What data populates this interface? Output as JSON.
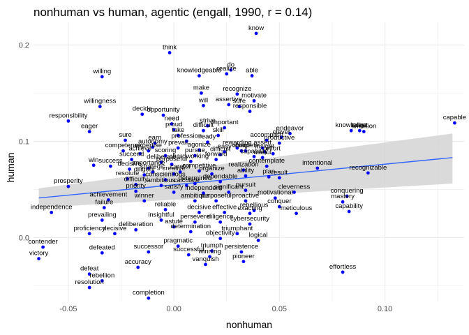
{
  "chart_data": {
    "type": "scatter",
    "title": "nonhuman vs human, agentic (engall, 1990, r = 0.14)",
    "xlabel": "nonhuman",
    "ylabel": "human",
    "xlim": [
      -0.0665,
      0.1375
    ],
    "ylim": [
      -0.0665,
      0.2235
    ],
    "x_ticks": [
      -0.05,
      0.0,
      0.05,
      0.1
    ],
    "x_tick_labels": [
      "-0.05",
      "0.00",
      "0.05",
      "0.10"
    ],
    "y_ticks": [
      0.0,
      0.1,
      0.2
    ],
    "y_tick_labels": [
      "0.0",
      "0.1",
      "0.2"
    ],
    "grid": true,
    "colors": {
      "point": "#0000ff",
      "trend": "#3366ff",
      "band": "#d3d3d3",
      "grid": "#ebebeb"
    },
    "trend": {
      "x": [
        -0.064,
        0.132
      ],
      "y": [
        0.041,
        0.083
      ],
      "ci_lower": [
        0.031,
        0.056
      ],
      "ci_upper": [
        0.051,
        0.108
      ]
    },
    "points": [
      {
        "label": "know",
        "x": 0.039,
        "y": 0.212
      },
      {
        "label": "think",
        "x": -0.002,
        "y": 0.192
      },
      {
        "label": "willing",
        "x": -0.034,
        "y": 0.167
      },
      {
        "label": "knowledgeable",
        "x": 0.012,
        "y": 0.168
      },
      {
        "label": "realize",
        "x": 0.025,
        "y": 0.17
      },
      {
        "label": "do",
        "x": 0.027,
        "y": 0.174
      },
      {
        "label": "able",
        "x": 0.037,
        "y": 0.168
      },
      {
        "label": "make",
        "x": 0.013,
        "y": 0.15
      },
      {
        "label": "recognize",
        "x": 0.03,
        "y": 0.149
      },
      {
        "label": "motivate",
        "x": 0.038,
        "y": 0.142
      },
      {
        "label": "will",
        "x": 0.014,
        "y": 0.137
      },
      {
        "label": "assertive",
        "x": 0.026,
        "y": 0.138
      },
      {
        "label": "sure",
        "x": 0.031,
        "y": 0.136
      },
      {
        "label": "willingness",
        "x": -0.035,
        "y": 0.136
      },
      {
        "label": "responsible",
        "x": 0.036,
        "y": 0.131
      },
      {
        "label": "decide",
        "x": -0.015,
        "y": 0.128
      },
      {
        "label": "opportunity",
        "x": -0.005,
        "y": 0.127
      },
      {
        "label": "responsibility",
        "x": -0.05,
        "y": 0.121
      },
      {
        "label": "capable",
        "x": 0.133,
        "y": 0.119
      },
      {
        "label": "need",
        "x": -0.001,
        "y": 0.118
      },
      {
        "label": "strive",
        "x": 0.016,
        "y": 0.116
      },
      {
        "label": "important",
        "x": 0.024,
        "y": 0.114
      },
      {
        "label": "proud",
        "x": 0.0,
        "y": 0.112
      },
      {
        "label": "difficult",
        "x": 0.014,
        "y": 0.111
      },
      {
        "label": "knowledge",
        "x": 0.084,
        "y": 0.111
      },
      {
        "label": "talent",
        "x": 0.088,
        "y": 0.111
      },
      {
        "label": "ambition",
        "x": 0.09,
        "y": 0.11
      },
      {
        "label": "eager",
        "x": -0.04,
        "y": 0.11
      },
      {
        "label": "endeavor",
        "x": 0.055,
        "y": 0.108
      },
      {
        "label": "take",
        "x": 0.002,
        "y": 0.106
      },
      {
        "label": "skill",
        "x": 0.021,
        "y": 0.106
      },
      {
        "label": "clever",
        "x": 0.051,
        "y": 0.104
      },
      {
        "label": "sure",
        "x": -0.023,
        "y": 0.101
      },
      {
        "label": "profession",
        "x": 0.006,
        "y": 0.1
      },
      {
        "label": "ready",
        "x": 0.016,
        "y": 0.099
      },
      {
        "label": "accomplish",
        "x": 0.044,
        "y": 0.101
      },
      {
        "label": "productive",
        "x": 0.05,
        "y": 0.098
      },
      {
        "label": "earn",
        "x": -0.009,
        "y": 0.098
      },
      {
        "label": "autonomy",
        "x": -0.01,
        "y": 0.094
      },
      {
        "label": "prevail",
        "x": 0.002,
        "y": 0.093
      },
      {
        "label": "rewarding",
        "x": 0.03,
        "y": 0.093
      },
      {
        "label": "complete",
        "x": 0.034,
        "y": 0.09
      },
      {
        "label": "insight",
        "x": 0.043,
        "y": 0.089
      },
      {
        "label": "assert",
        "x": 0.042,
        "y": 0.093
      },
      {
        "label": "expertise",
        "x": -0.012,
        "y": 0.09
      },
      {
        "label": "competence",
        "x": -0.024,
        "y": 0.09
      },
      {
        "label": "agonize",
        "x": 0.012,
        "y": 0.091
      },
      {
        "label": "easy",
        "x": 0.024,
        "y": 0.089
      },
      {
        "label": "sharp",
        "x": 0.032,
        "y": 0.09
      },
      {
        "label": "effort",
        "x": 0.047,
        "y": 0.087
      },
      {
        "label": "achieve",
        "x": -0.016,
        "y": 0.087
      },
      {
        "label": "scoring",
        "x": -0.004,
        "y": 0.085
      },
      {
        "label": "pursue",
        "x": 0.01,
        "y": 0.085
      },
      {
        "label": "difficult",
        "x": 0.022,
        "y": 0.086
      },
      {
        "label": "capability",
        "x": 0.038,
        "y": 0.084
      },
      {
        "label": "useful",
        "x": 0.042,
        "y": 0.083
      },
      {
        "label": "succeed",
        "x": -0.02,
        "y": 0.081
      },
      {
        "label": "deliberate",
        "x": -0.006,
        "y": 0.078
      },
      {
        "label": "hardworking",
        "x": 0.008,
        "y": 0.079
      },
      {
        "label": "forward",
        "x": 0.02,
        "y": 0.081
      },
      {
        "label": "win",
        "x": -0.038,
        "y": 0.075
      },
      {
        "label": "success",
        "x": -0.03,
        "y": 0.074
      },
      {
        "label": "purposeful",
        "x": -0.001,
        "y": 0.076
      },
      {
        "label": "contemplate",
        "x": 0.044,
        "y": 0.074
      },
      {
        "label": "importance",
        "x": -0.012,
        "y": 0.072
      },
      {
        "label": "recognizable",
        "x": 0.092,
        "y": 0.067
      },
      {
        "label": "intentional",
        "x": 0.068,
        "y": 0.072
      },
      {
        "label": "decisive",
        "x": -0.021,
        "y": 0.071
      },
      {
        "label": "strategic",
        "x": -0.01,
        "y": 0.068
      },
      {
        "label": "careful",
        "x": 0.003,
        "y": 0.068
      },
      {
        "label": "competitive",
        "x": 0.012,
        "y": 0.069
      },
      {
        "label": "realization",
        "x": 0.033,
        "y": 0.07
      },
      {
        "label": "diligent",
        "x": -0.014,
        "y": 0.065
      },
      {
        "label": "creative",
        "x": 0.0,
        "y": 0.066
      },
      {
        "label": "organize",
        "x": 0.018,
        "y": 0.066
      },
      {
        "label": "ability",
        "x": 0.034,
        "y": 0.064
      },
      {
        "label": "plan",
        "x": 0.045,
        "y": 0.063
      },
      {
        "label": "result",
        "x": 0.05,
        "y": 0.062
      },
      {
        "label": "resolute",
        "x": -0.022,
        "y": 0.061
      },
      {
        "label": "conscientious",
        "x": -0.004,
        "y": 0.06
      },
      {
        "label": "dependable",
        "x": 0.022,
        "y": 0.058
      },
      {
        "label": "independence",
        "x": -0.058,
        "y": 0.026
      },
      {
        "label": "prosperity",
        "x": -0.05,
        "y": 0.053
      },
      {
        "label": "difficulty",
        "x": -0.018,
        "y": 0.055
      },
      {
        "label": "ambitious",
        "x": -0.006,
        "y": 0.054
      },
      {
        "label": "calculate",
        "x": 0.006,
        "y": 0.054
      },
      {
        "label": "determined",
        "x": 0.01,
        "y": 0.056
      },
      {
        "label": "priority",
        "x": -0.018,
        "y": 0.048
      },
      {
        "label": "satisfy",
        "x": 0.0,
        "y": 0.047
      },
      {
        "label": "independent",
        "x": 0.014,
        "y": 0.046
      },
      {
        "label": "significant",
        "x": 0.026,
        "y": 0.047
      },
      {
        "label": "pursuit",
        "x": 0.034,
        "y": 0.049
      },
      {
        "label": "cleverness",
        "x": 0.057,
        "y": 0.047
      },
      {
        "label": "conquering",
        "x": 0.082,
        "y": 0.043
      },
      {
        "label": "achievement",
        "x": -0.031,
        "y": 0.039
      },
      {
        "label": "winner",
        "x": -0.014,
        "y": 0.038
      },
      {
        "label": "ambitious",
        "x": 0.01,
        "y": 0.038
      },
      {
        "label": "purposeful",
        "x": 0.02,
        "y": 0.038
      },
      {
        "label": "proactive",
        "x": 0.034,
        "y": 0.038
      },
      {
        "label": "motivational",
        "x": 0.048,
        "y": 0.041
      },
      {
        "label": "mastery",
        "x": 0.08,
        "y": 0.037
      },
      {
        "label": "failure",
        "x": -0.033,
        "y": 0.031
      },
      {
        "label": "reliable",
        "x": -0.004,
        "y": 0.029
      },
      {
        "label": "rebellious",
        "x": 0.038,
        "y": 0.028
      },
      {
        "label": "conquer",
        "x": 0.05,
        "y": 0.032
      },
      {
        "label": "decisive",
        "x": 0.012,
        "y": 0.026
      },
      {
        "label": "effective",
        "x": 0.024,
        "y": 0.026
      },
      {
        "label": "exacting",
        "x": 0.036,
        "y": 0.025
      },
      {
        "label": "meticulous",
        "x": 0.058,
        "y": 0.025
      },
      {
        "label": "capability",
        "x": 0.083,
        "y": 0.027
      },
      {
        "label": "prevailing",
        "x": -0.034,
        "y": 0.018
      },
      {
        "label": "insightful",
        "x": -0.006,
        "y": 0.018
      },
      {
        "label": "persevere",
        "x": 0.01,
        "y": 0.016
      },
      {
        "label": "diligence",
        "x": 0.022,
        "y": 0.016
      },
      {
        "label": "cybersecurity",
        "x": 0.036,
        "y": 0.014
      },
      {
        "label": "deliberation",
        "x": -0.018,
        "y": 0.008
      },
      {
        "label": "astute",
        "x": 0.0,
        "y": 0.011
      },
      {
        "label": "determination",
        "x": 0.008,
        "y": 0.006
      },
      {
        "label": "proficiency",
        "x": -0.04,
        "y": 0.004
      },
      {
        "label": "decisive",
        "x": -0.028,
        "y": 0.004
      },
      {
        "label": "triumphant",
        "x": 0.03,
        "y": 0.004
      },
      {
        "label": "objectivity",
        "x": 0.022,
        "y": -0.001
      },
      {
        "label": "logical",
        "x": 0.04,
        "y": -0.003
      },
      {
        "label": "contender",
        "x": -0.062,
        "y": -0.01
      },
      {
        "label": "pragmatic",
        "x": 0.002,
        "y": -0.009
      },
      {
        "label": "defeated",
        "x": -0.034,
        "y": -0.016
      },
      {
        "label": "successor",
        "x": -0.012,
        "y": -0.015
      },
      {
        "label": "triumph",
        "x": 0.018,
        "y": -0.014
      },
      {
        "label": "persistence",
        "x": 0.032,
        "y": -0.015
      },
      {
        "label": "successful",
        "x": 0.007,
        "y": -0.018
      },
      {
        "label": "winning",
        "x": 0.017,
        "y": -0.02
      },
      {
        "label": "victory",
        "x": -0.064,
        "y": -0.022
      },
      {
        "label": "pioneer",
        "x": 0.033,
        "y": -0.025
      },
      {
        "label": "vanquish",
        "x": 0.015,
        "y": -0.028
      },
      {
        "label": "accuracy",
        "x": -0.017,
        "y": -0.031
      },
      {
        "label": "effortless",
        "x": 0.08,
        "y": -0.036
      },
      {
        "label": "defeat",
        "x": -0.04,
        "y": -0.038
      },
      {
        "label": "rebellion",
        "x": -0.034,
        "y": -0.045
      },
      {
        "label": "resolution",
        "x": -0.04,
        "y": -0.052
      },
      {
        "label": "completion",
        "x": -0.012,
        "y": -0.063
      }
    ]
  }
}
